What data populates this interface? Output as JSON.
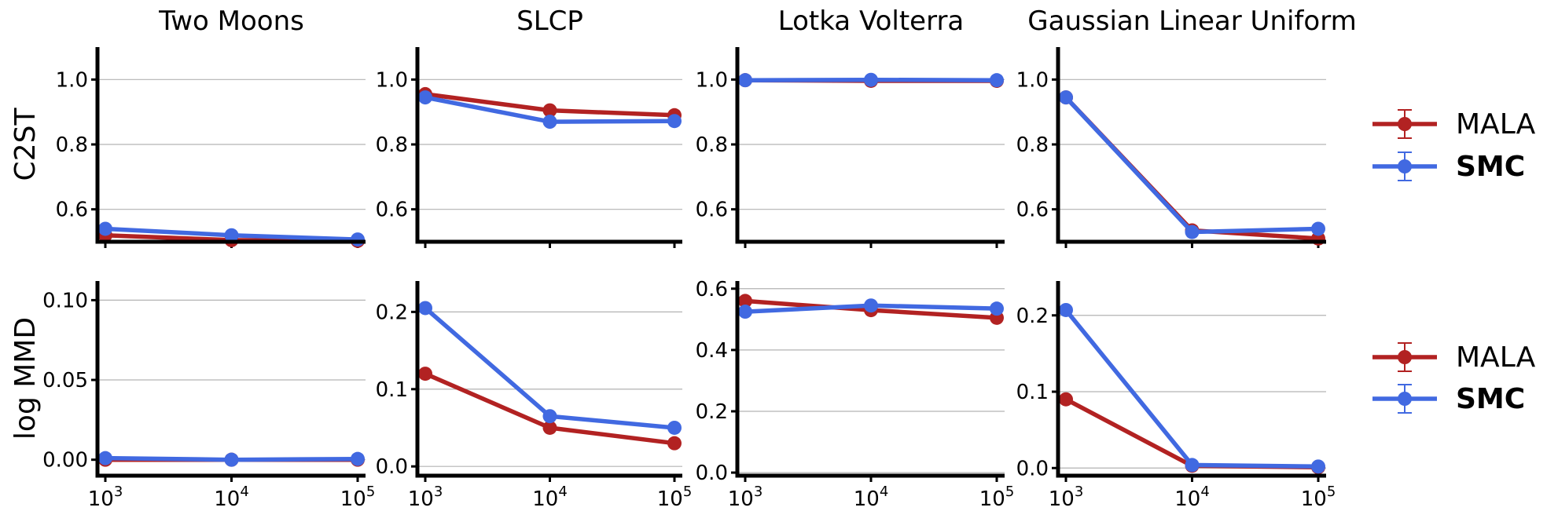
{
  "colors": {
    "MALA": "#b22222",
    "SMC": "#4169e1"
  },
  "legend": [
    {
      "label": "MALA",
      "bold": false
    },
    {
      "label": "SMC",
      "bold": true
    }
  ],
  "rows": [
    {
      "label": "C2ST"
    },
    {
      "label": "log MMD"
    }
  ],
  "columns": [
    {
      "title": "Two Moons"
    },
    {
      "title": "SLCP"
    },
    {
      "title": "Lotka Volterra"
    },
    {
      "title": "Gaussian Linear Uniform"
    }
  ],
  "x_ticks": [
    {
      "base": "10",
      "exp": "3"
    },
    {
      "base": "10",
      "exp": "4"
    },
    {
      "base": "10",
      "exp": "5"
    }
  ],
  "chart_data": [
    {
      "type": "line",
      "title": "Two Moons",
      "ylabel": "C2ST",
      "xscale": "log",
      "x": [
        1000,
        10000,
        100000
      ],
      "ylim": [
        0.5,
        1.1
      ],
      "yticks": [
        0.6,
        0.8,
        1.0
      ],
      "ytick_labels": [
        "0.6",
        "0.8",
        "1.0"
      ],
      "series": [
        {
          "name": "MALA",
          "values": [
            0.52,
            0.505,
            0.503
          ]
        },
        {
          "name": "SMC",
          "values": [
            0.54,
            0.52,
            0.507
          ]
        }
      ]
    },
    {
      "type": "line",
      "title": "SLCP",
      "ylabel": "C2ST",
      "xscale": "log",
      "x": [
        1000,
        10000,
        100000
      ],
      "ylim": [
        0.5,
        1.1
      ],
      "yticks": [
        0.6,
        0.8,
        1.0
      ],
      "ytick_labels": [
        "0.6",
        "0.8",
        "1.0"
      ],
      "series": [
        {
          "name": "MALA",
          "values": [
            0.955,
            0.905,
            0.89
          ]
        },
        {
          "name": "SMC",
          "values": [
            0.945,
            0.87,
            0.872
          ]
        }
      ]
    },
    {
      "type": "line",
      "title": "Lotka Volterra",
      "ylabel": "C2ST",
      "xscale": "log",
      "x": [
        1000,
        10000,
        100000
      ],
      "ylim": [
        0.5,
        1.1
      ],
      "yticks": [
        0.6,
        0.8,
        1.0
      ],
      "ytick_labels": [
        "0.6",
        "0.8",
        "1.0"
      ],
      "series": [
        {
          "name": "MALA",
          "values": [
            0.998,
            0.996,
            0.996
          ]
        },
        {
          "name": "SMC",
          "values": [
            0.998,
            0.999,
            0.998
          ]
        }
      ]
    },
    {
      "type": "line",
      "title": "Gaussian Linear Uniform",
      "ylabel": "C2ST",
      "xscale": "log",
      "x": [
        1000,
        10000,
        100000
      ],
      "ylim": [
        0.5,
        1.1
      ],
      "yticks": [
        0.6,
        0.8,
        1.0
      ],
      "ytick_labels": [
        "0.6",
        "0.8",
        "1.0"
      ],
      "series": [
        {
          "name": "MALA",
          "values": [
            0.945,
            0.535,
            0.51
          ]
        },
        {
          "name": "SMC",
          "values": [
            0.945,
            0.53,
            0.54
          ]
        }
      ]
    },
    {
      "type": "line",
      "title": "Two Moons",
      "ylabel": "log MMD",
      "xscale": "log",
      "x": [
        1000,
        10000,
        100000
      ],
      "ylim": [
        -0.01,
        0.112
      ],
      "yticks": [
        0.0,
        0.05,
        0.1
      ],
      "ytick_labels": [
        "0.00",
        "0.05",
        "0.10"
      ],
      "series": [
        {
          "name": "MALA",
          "values": [
            0.0,
            0.0,
            0.0
          ]
        },
        {
          "name": "SMC",
          "values": [
            0.001,
            0.0,
            0.0005
          ]
        }
      ]
    },
    {
      "type": "line",
      "title": "SLCP",
      "ylabel": "log MMD",
      "xscale": "log",
      "x": [
        1000,
        10000,
        100000
      ],
      "ylim": [
        -0.012,
        0.24
      ],
      "yticks": [
        0.0,
        0.1,
        0.2
      ],
      "ytick_labels": [
        "0.0",
        "0.1",
        "0.2"
      ],
      "series": [
        {
          "name": "MALA",
          "values": [
            0.12,
            0.05,
            0.03
          ]
        },
        {
          "name": "SMC",
          "values": [
            0.205,
            0.065,
            0.05
          ]
        }
      ]
    },
    {
      "type": "line",
      "title": "Lotka Volterra",
      "ylabel": "log MMD",
      "xscale": "log",
      "x": [
        1000,
        10000,
        100000
      ],
      "ylim": [
        -0.01,
        0.625
      ],
      "yticks": [
        0.0,
        0.2,
        0.4,
        0.6
      ],
      "ytick_labels": [
        "0.0",
        "0.2",
        "0.4",
        "0.6"
      ],
      "series": [
        {
          "name": "MALA",
          "values": [
            0.56,
            0.53,
            0.505
          ]
        },
        {
          "name": "SMC",
          "values": [
            0.525,
            0.545,
            0.535
          ]
        }
      ]
    },
    {
      "type": "line",
      "title": "Gaussian Linear Uniform",
      "ylabel": "log MMD",
      "xscale": "log",
      "x": [
        1000,
        10000,
        100000
      ],
      "ylim": [
        -0.01,
        0.245
      ],
      "yticks": [
        0.0,
        0.1,
        0.2
      ],
      "ytick_labels": [
        "0.0",
        "0.1",
        "0.2"
      ],
      "series": [
        {
          "name": "MALA",
          "values": [
            0.09,
            0.003,
            0.001
          ]
        },
        {
          "name": "SMC",
          "values": [
            0.207,
            0.004,
            0.002
          ]
        }
      ]
    }
  ]
}
